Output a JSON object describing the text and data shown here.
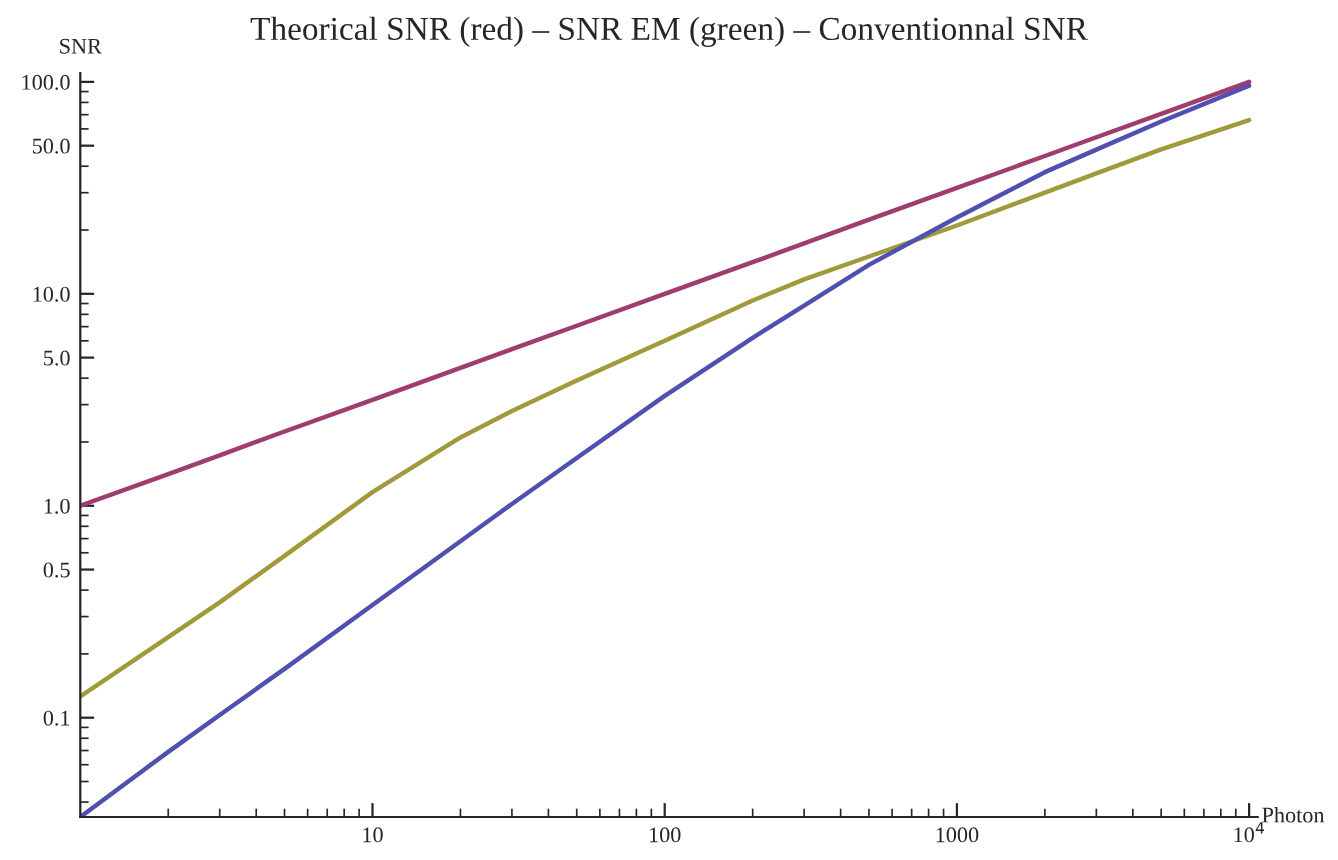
{
  "chart_data": {
    "type": "line",
    "title": "Theorical SNR (red) – SNR EM (green) – Conventionnal SNR",
    "xlabel": "Photon",
    "ylabel": "SNR",
    "log": "xy",
    "grid": false,
    "legend": false,
    "line_style": "solid",
    "marker": "none",
    "xlim": [
      1,
      10700
    ],
    "ylim": [
      0.034,
      110
    ],
    "xticks": [
      10,
      100,
      1000,
      {
        "value": 10000,
        "label": "10$^{4}$"
      }
    ],
    "yticks": [
      {
        "value": 0.1,
        "label": "0.1"
      },
      {
        "value": 0.5,
        "label": "0.5"
      },
      {
        "value": 1,
        "label": "1.0"
      },
      {
        "value": 5,
        "label": "5.0"
      },
      {
        "value": 10,
        "label": "10.0"
      },
      {
        "value": 50,
        "label": "50.0"
      },
      {
        "value": 100,
        "label": "100.0"
      }
    ],
    "x": [
      1,
      2,
      3,
      5,
      10,
      20,
      30,
      50,
      100,
      200,
      300,
      500,
      1000,
      2000,
      3000,
      5000,
      10000
    ],
    "series": [
      {
        "color": "#9e3d6e",
        "values": [
          1,
          1.41,
          1.73,
          2.24,
          3.16,
          4.47,
          5.48,
          7.07,
          10,
          14.1,
          17.3,
          22.4,
          31.6,
          44.7,
          54.8,
          70.7,
          100
        ]
      },
      {
        "color": "#a09a3c",
        "values": [
          0.126,
          0.24,
          0.35,
          0.58,
          1.16,
          2.1,
          2.8,
          3.9,
          6.0,
          9.3,
          11.7,
          15,
          21,
          30,
          37,
          48,
          66
        ]
      },
      {
        "color": "#5050b0",
        "values": [
          0.034,
          0.069,
          0.103,
          0.17,
          0.34,
          0.68,
          1.02,
          1.68,
          3.3,
          6.2,
          8.8,
          13.7,
          22.9,
          37.5,
          47.9,
          65,
          96
        ]
      }
    ]
  }
}
